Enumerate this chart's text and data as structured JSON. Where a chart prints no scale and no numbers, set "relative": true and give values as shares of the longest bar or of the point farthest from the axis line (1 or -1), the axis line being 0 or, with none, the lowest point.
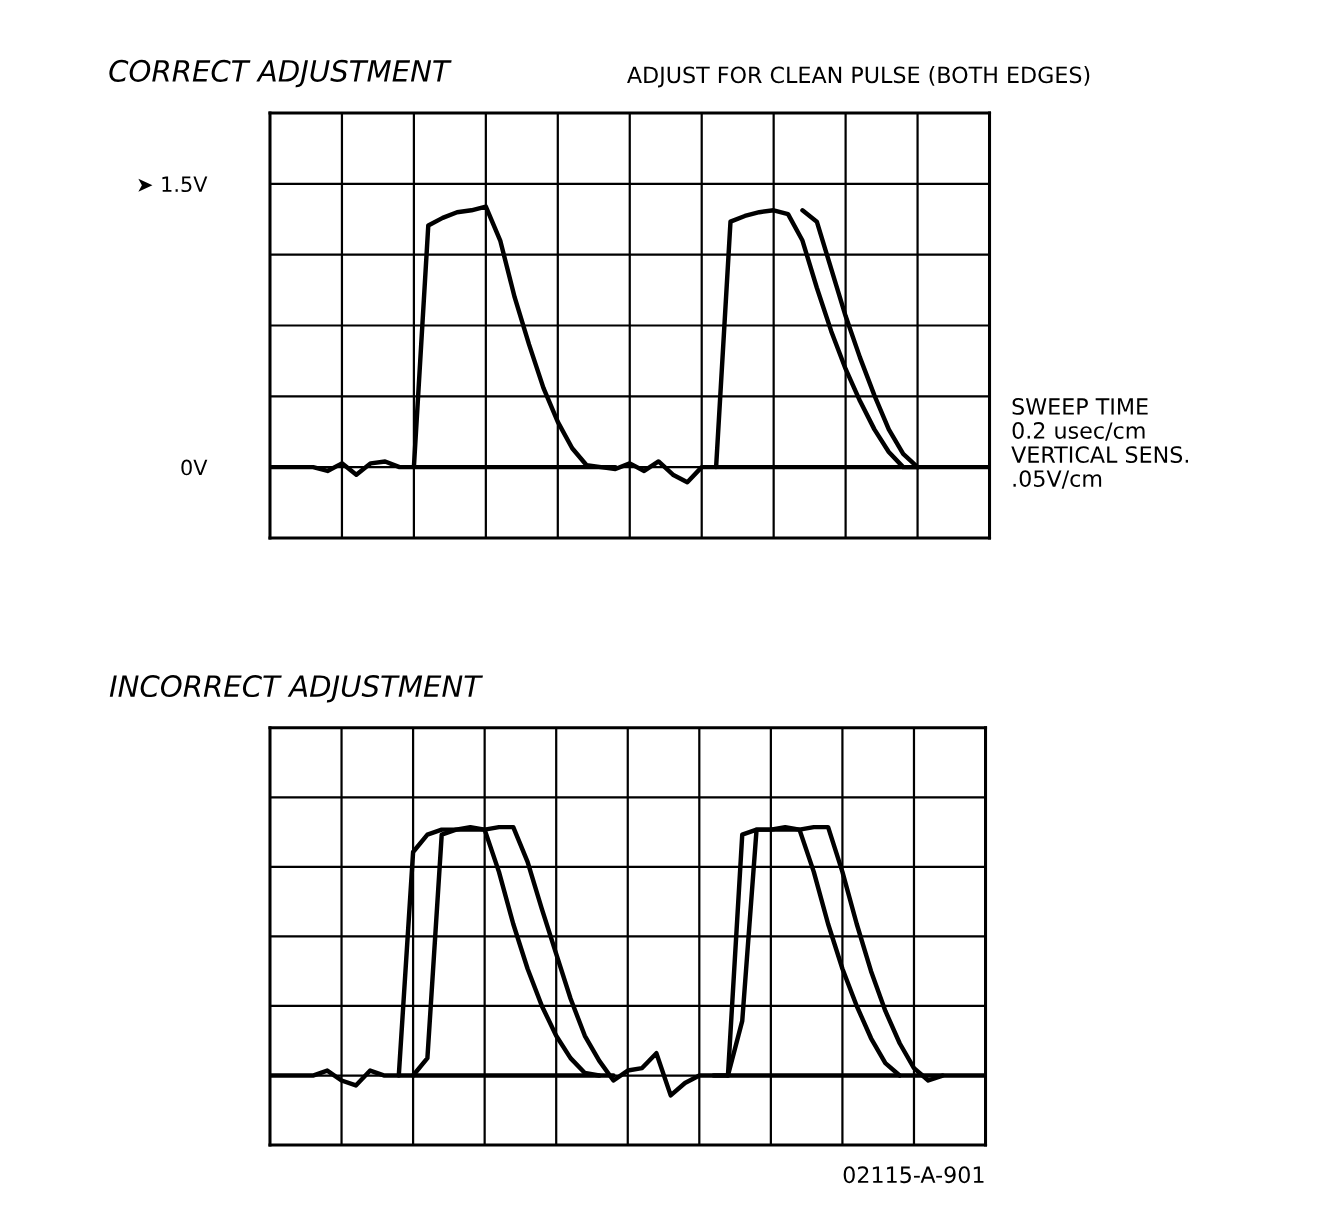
{
  "chart_data": [
    {
      "type": "line",
      "title": "CORRECT ADJUSTMENT",
      "annotations": [
        "ADJUST FOR CLEAN PULSE (BOTH EDGES)",
        "SWEEP TIME\n0.2 usec/cm\nVERTICAL SENS.\n.05V/cm"
      ],
      "categories": [
        null,
        null,
        null,
        null,
        null,
        null,
        null,
        null,
        null,
        null,
        null,
        null,
        null,
        null,
        null,
        null,
        null,
        null,
        null,
        null,
        null,
        null,
        null,
        null,
        null,
        null,
        null,
        null,
        null,
        null,
        null,
        null,
        null,
        null,
        null,
        null,
        null,
        null,
        null,
        null,
        null,
        null,
        null,
        null,
        null,
        null,
        null,
        null,
        null,
        null,
        null
      ],
      "ylim": [
        -0.375,
        1.875
      ],
      "yticks": [
        {
          "value": 0,
          "label": "0V"
        },
        {
          "value": 1.5,
          "label": "➤ 1.5V"
        }
      ],
      "grid": true,
      "tick_labels": "y",
      "line_style": "solid",
      "series": [
        {
          "color": "#000000",
          "values": [
            0,
            0,
            0,
            0,
            -0.02,
            0.02,
            -0.04,
            0.02,
            0.03,
            0,
            0,
            1.28,
            1.32,
            1.35,
            1.36,
            1.38,
            1.2,
            0.9,
            0.65,
            0.42,
            0.24,
            0.1,
            0.01,
            0,
            -0.01,
            0.02,
            -0.02,
            0.03,
            -0.04,
            -0.08,
            0,
            0,
            1.3,
            1.33,
            1.35,
            1.36,
            1.34,
            1.2,
            0.95,
            0.72,
            0.52,
            0.35,
            0.2,
            0.08,
            0,
            0,
            0,
            0,
            0,
            0,
            0
          ]
        },
        {
          "color": "#000000",
          "values": [
            null,
            null,
            null,
            null,
            null,
            null,
            null,
            null,
            null,
            null,
            null,
            null,
            null,
            null,
            null,
            null,
            null,
            null,
            null,
            null,
            null,
            null,
            null,
            null,
            null,
            null,
            null,
            null,
            null,
            null,
            null,
            null,
            null,
            null,
            null,
            null,
            null,
            1.36,
            1.3,
            1.05,
            0.8,
            0.58,
            0.38,
            0.2,
            0.07,
            0,
            null,
            null,
            null,
            null,
            null
          ]
        },
        {
          "color": "#000000",
          "values": [
            null,
            null,
            null,
            null,
            null,
            null,
            null,
            null,
            null,
            null,
            0,
            0,
            0,
            0,
            0,
            0,
            0,
            0,
            0,
            0,
            0,
            0,
            0,
            0,
            0,
            null,
            null,
            null,
            null,
            null,
            null,
            0,
            0,
            0,
            0,
            0,
            0,
            0,
            0,
            0,
            0,
            0,
            0,
            0,
            0,
            0,
            null,
            null,
            null,
            null,
            null
          ]
        }
      ]
    },
    {
      "type": "line",
      "title": "INCORRECT ADJUSTMENT",
      "annotations": [
        "02115-A-901"
      ],
      "categories": [
        null,
        null,
        null,
        null,
        null,
        null,
        null,
        null,
        null,
        null,
        null,
        null,
        null,
        null,
        null,
        null,
        null,
        null,
        null,
        null,
        null,
        null,
        null,
        null,
        null,
        null,
        null,
        null,
        null,
        null,
        null,
        null,
        null,
        null,
        null,
        null,
        null,
        null,
        null,
        null,
        null,
        null,
        null,
        null,
        null,
        null,
        null,
        null,
        null,
        null,
        null
      ],
      "relative": true,
      "grid": true,
      "line_style": "solid",
      "series": [
        {
          "color": "#000000",
          "values": [
            0,
            0,
            0,
            0,
            0.02,
            -0.02,
            -0.04,
            0.02,
            0,
            0,
            0.9,
            0.97,
            0.99,
            0.99,
            1,
            0.99,
            1,
            1,
            0.86,
            0.67,
            0.49,
            0.31,
            0.16,
            0.06,
            -0.02,
            0.02,
            0.03,
            0.09,
            -0.08,
            -0.03,
            0,
            0,
            0,
            0.97,
            0.99,
            0.99,
            1,
            0.99,
            1,
            1,
            0.82,
            0.61,
            0.42,
            0.26,
            0.13,
            0.03,
            -0.02,
            0,
            0,
            0,
            0
          ]
        },
        {
          "color": "#000000",
          "values": [
            null,
            null,
            null,
            null,
            null,
            null,
            null,
            null,
            null,
            null,
            0,
            0.07,
            0.97,
            0.99,
            0.99,
            0.99,
            0.82,
            0.61,
            0.43,
            0.28,
            0.16,
            0.07,
            0.01,
            0,
            null,
            null,
            null,
            null,
            null,
            null,
            null,
            null,
            0,
            0.22,
            0.99,
            0.99,
            0.99,
            0.99,
            0.82,
            0.61,
            0.43,
            0.28,
            0.15,
            0.05,
            0,
            null,
            null,
            null,
            null,
            null,
            null
          ]
        },
        {
          "color": "#000000",
          "values": [
            null,
            null,
            null,
            null,
            null,
            null,
            null,
            null,
            null,
            0,
            0,
            0,
            0,
            0,
            0,
            0,
            0,
            0,
            0,
            0,
            0,
            0,
            0,
            0,
            0,
            null,
            null,
            null,
            null,
            null,
            null,
            0,
            0,
            0,
            0,
            0,
            0,
            0,
            0,
            0,
            0,
            0,
            0,
            0,
            0,
            0,
            0,
            0,
            null,
            null,
            null
          ]
        }
      ]
    }
  ]
}
